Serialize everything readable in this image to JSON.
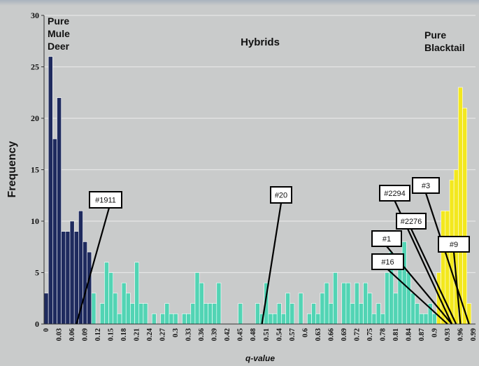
{
  "chart_data": {
    "type": "bar",
    "title": "",
    "xlabel": "q-value",
    "ylabel": "Frequency",
    "ylim": [
      0,
      30
    ],
    "yticks": [
      0,
      5,
      10,
      15,
      20,
      25,
      30
    ],
    "xlim": [
      0,
      0.99
    ],
    "xticks": [
      "0",
      "0.03",
      "0.06",
      "0.09",
      "0.12",
      "0.15",
      "0.18",
      "0.21",
      "0.24",
      "0.27",
      "0.3",
      "0.33",
      "0.36",
      "0.39",
      "0.42",
      "0.45",
      "0.48",
      "0.51",
      "0.54",
      "0.57",
      "0.6",
      "0.63",
      "0.66",
      "0.69",
      "0.72",
      "0.75",
      "0.78",
      "0.81",
      "0.84",
      "0.87",
      "0.9",
      "0.93",
      "0.96",
      "0.99"
    ],
    "grid": true,
    "bin_width": 0.01,
    "colors": {
      "mule": "#1e2a5e",
      "hybrid": "#52d4b4",
      "blacktail": "#f3e81e",
      "background": "#c9cbcb",
      "grid": "#e6e6e6"
    },
    "series": [
      {
        "name": "Pure Mule Deer",
        "bin_starts": [
          0.0,
          0.01,
          0.02,
          0.03,
          0.04,
          0.05,
          0.06,
          0.07,
          0.08,
          0.09,
          0.1,
          0.11
        ],
        "values": [
          3,
          26,
          18,
          22,
          9,
          9,
          10,
          9,
          11,
          8,
          7,
          0
        ]
      },
      {
        "name": "Hybrids",
        "bin_starts": [
          0.11,
          0.12,
          0.13,
          0.14,
          0.15,
          0.16,
          0.17,
          0.18,
          0.19,
          0.2,
          0.21,
          0.22,
          0.23,
          0.24,
          0.25,
          0.26,
          0.27,
          0.28,
          0.29,
          0.3,
          0.31,
          0.32,
          0.33,
          0.34,
          0.35,
          0.36,
          0.37,
          0.38,
          0.39,
          0.4,
          0.41,
          0.42,
          0.43,
          0.44,
          0.45,
          0.46,
          0.47,
          0.48,
          0.49,
          0.5,
          0.51,
          0.52,
          0.53,
          0.54,
          0.55,
          0.56,
          0.57,
          0.58,
          0.59,
          0.6,
          0.61,
          0.62,
          0.63,
          0.64,
          0.65,
          0.66,
          0.67,
          0.68,
          0.69,
          0.7,
          0.71,
          0.72,
          0.73,
          0.74,
          0.75,
          0.76,
          0.77,
          0.78,
          0.79,
          0.8,
          0.81,
          0.82,
          0.83,
          0.84,
          0.85,
          0.86,
          0.87,
          0.88,
          0.89,
          0.9
        ],
        "values": [
          3,
          0,
          2,
          6,
          5,
          3,
          1,
          4,
          3,
          2,
          6,
          2,
          2,
          0,
          1,
          0,
          1,
          2,
          1,
          1,
          0,
          1,
          1,
          2,
          5,
          4,
          2,
          2,
          2,
          4,
          0,
          0,
          0,
          0,
          2,
          0,
          0,
          0,
          2,
          1,
          4,
          1,
          1,
          2,
          1,
          3,
          2,
          0,
          3,
          0,
          1,
          2,
          1,
          3,
          4,
          2,
          5,
          0,
          4,
          4,
          2,
          4,
          2,
          4,
          3,
          1,
          2,
          1,
          5,
          7,
          3,
          6,
          8,
          5,
          3,
          2,
          1,
          1,
          2,
          1
        ]
      },
      {
        "name": "Pure Blacktail",
        "bin_starts": [
          0.91,
          0.92,
          0.93,
          0.94,
          0.95,
          0.96,
          0.97,
          0.98
        ],
        "values": [
          5,
          11,
          11,
          14,
          15,
          23,
          21,
          2
        ]
      }
    ],
    "annotations": [
      {
        "label": "#1911",
        "points_to": 0.07
      },
      {
        "label": "#20",
        "points_to": 0.5
      },
      {
        "label": "#2294",
        "points_to": 0.94
      },
      {
        "label": "#3",
        "points_to": 0.98
      },
      {
        "label": "#2276",
        "points_to": 0.95
      },
      {
        "label": "#1",
        "points_to": 0.94
      },
      {
        "label": "#9",
        "points_to": 0.96
      },
      {
        "label": "#16",
        "points_to": 0.93
      }
    ],
    "region_labels": [
      {
        "key": "mule",
        "lines": [
          "Pure",
          "Mule",
          "Deer"
        ]
      },
      {
        "key": "hybrid",
        "lines": [
          "Hybrids"
        ]
      },
      {
        "key": "blacktail",
        "lines": [
          "Pure",
          "Blacktail"
        ]
      }
    ]
  }
}
